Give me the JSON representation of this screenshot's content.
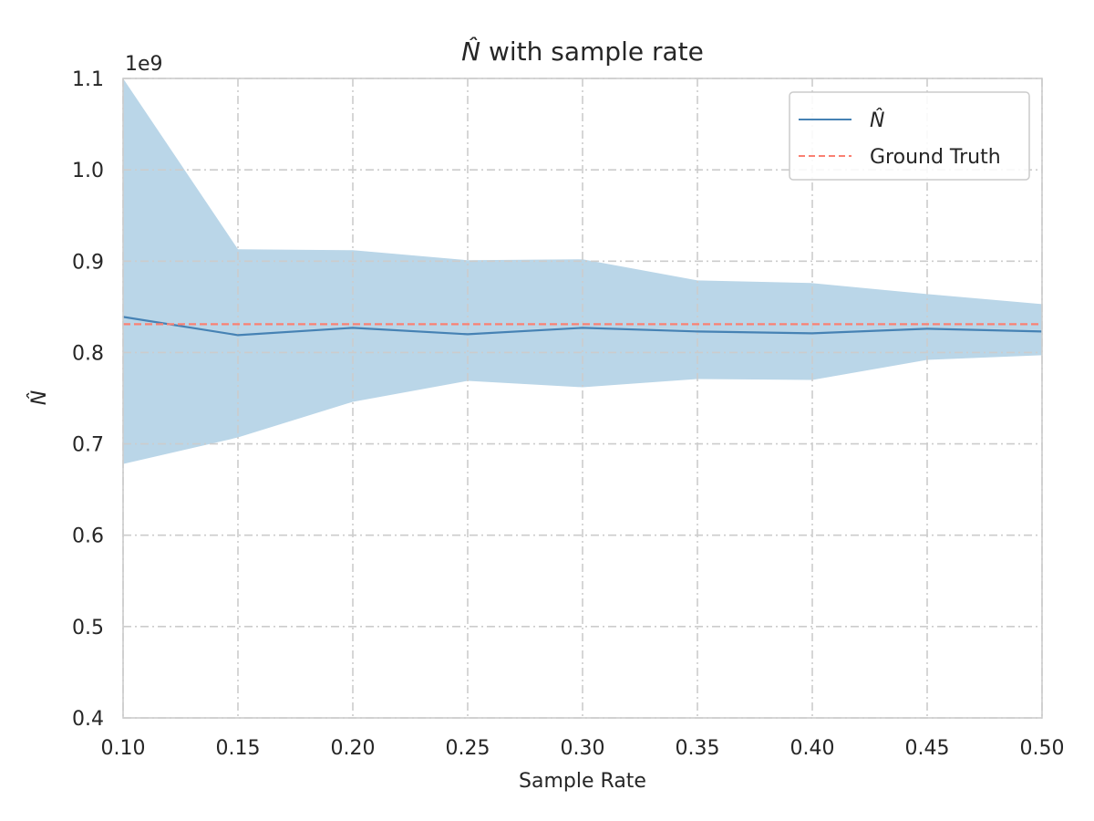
{
  "chart_data": {
    "type": "line",
    "title_math": "N̂",
    "title_text": " with sample rate",
    "xlabel": "Sample Rate",
    "ylabel": "N̂",
    "y_offset_label": "1e9",
    "xlim": [
      0.1,
      0.5
    ],
    "ylim": [
      0.4,
      1.1
    ],
    "x_ticks": [
      "0.10",
      "0.15",
      "0.20",
      "0.25",
      "0.30",
      "0.35",
      "0.40",
      "0.45",
      "0.50"
    ],
    "y_ticks": [
      "0.4",
      "0.5",
      "0.6",
      "0.7",
      "0.8",
      "0.9",
      "1.0",
      "1.1"
    ],
    "grid": true,
    "legend_position": "top-right",
    "x": [
      0.1,
      0.15,
      0.2,
      0.25,
      0.3,
      0.35,
      0.4,
      0.45,
      0.5
    ],
    "series": [
      {
        "name": "N̂",
        "kind": "line",
        "color": "#4682b4",
        "values": [
          0.839,
          0.819,
          0.827,
          0.82,
          0.827,
          0.823,
          0.821,
          0.826,
          0.823
        ]
      },
      {
        "name": "Ground Truth",
        "kind": "dashed-hline",
        "color": "#fa8072",
        "value": 0.831
      }
    ],
    "band": {
      "color": "#bad6e8",
      "upper": [
        1.1,
        0.913,
        0.912,
        0.901,
        0.902,
        0.879,
        0.876,
        0.864,
        0.853
      ],
      "lower": [
        0.678,
        0.707,
        0.746,
        0.769,
        0.762,
        0.771,
        0.77,
        0.792,
        0.797
      ]
    }
  }
}
